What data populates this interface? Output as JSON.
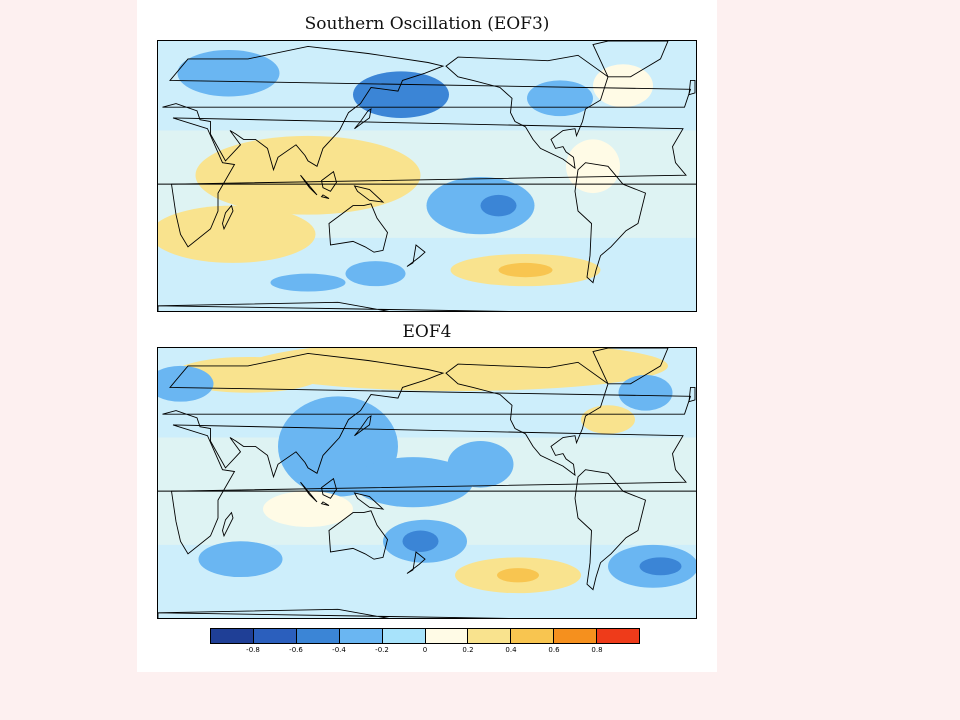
{
  "maps": [
    {
      "title": "Southern Oscillation (EOF3)",
      "anomalies": [
        {
          "lon": 47,
          "lat": 62,
          "rx": 34,
          "ry": 13,
          "value": -0.4
        },
        {
          "lon": 162,
          "lat": 50,
          "rx": 32,
          "ry": 13,
          "value": -0.45
        },
        {
          "lon": 165,
          "lat": 52,
          "rx": 16,
          "ry": 7,
          "value": -0.55
        },
        {
          "lon": 268,
          "lat": 48,
          "rx": 22,
          "ry": 10,
          "value": -0.3
        },
        {
          "lon": 215,
          "lat": -12,
          "rx": 36,
          "ry": 16,
          "value": -0.3
        },
        {
          "lon": 227,
          "lat": -12,
          "rx": 12,
          "ry": 6,
          "value": -0.45
        },
        {
          "lon": 100,
          "lat": 5,
          "rx": 75,
          "ry": 22,
          "value": 0.25
        },
        {
          "lon": 128,
          "lat": 8,
          "rx": 30,
          "ry": 12,
          "value": 0.32
        },
        {
          "lon": 50,
          "lat": -28,
          "rx": 55,
          "ry": 16,
          "value": 0.2
        },
        {
          "lon": 245,
          "lat": -48,
          "rx": 50,
          "ry": 9,
          "value": 0.28
        },
        {
          "lon": 245,
          "lat": -48,
          "rx": 18,
          "ry": 4,
          "value": 0.4
        },
        {
          "lon": 290,
          "lat": 10,
          "rx": 18,
          "ry": 15,
          "value": 0.15
        },
        {
          "lon": 310,
          "lat": 55,
          "rx": 20,
          "ry": 12,
          "value": 0.15
        },
        {
          "lon": 145,
          "lat": -50,
          "rx": 20,
          "ry": 7,
          "value": -0.3
        },
        {
          "lon": 100,
          "lat": -55,
          "rx": 25,
          "ry": 5,
          "value": -0.25
        }
      ]
    },
    {
      "title": "EOF4",
      "anomalies": [
        {
          "lon": 200,
          "lat": 70,
          "rx": 140,
          "ry": 14,
          "value": 0.2
        },
        {
          "lon": 60,
          "lat": 65,
          "rx": 50,
          "ry": 10,
          "value": 0.22
        },
        {
          "lon": 120,
          "lat": 25,
          "rx": 40,
          "ry": 28,
          "value": -0.22
        },
        {
          "lon": 170,
          "lat": 5,
          "rx": 40,
          "ry": 14,
          "value": -0.3
        },
        {
          "lon": 178,
          "lat": -28,
          "rx": 28,
          "ry": 12,
          "value": -0.3
        },
        {
          "lon": 175,
          "lat": -28,
          "rx": 12,
          "ry": 6,
          "value": -0.5
        },
        {
          "lon": 215,
          "lat": 15,
          "rx": 22,
          "ry": 13,
          "value": -0.25
        },
        {
          "lon": 15,
          "lat": 60,
          "rx": 22,
          "ry": 10,
          "value": -0.3
        },
        {
          "lon": 55,
          "lat": -38,
          "rx": 28,
          "ry": 10,
          "value": -0.25
        },
        {
          "lon": 240,
          "lat": -47,
          "rx": 42,
          "ry": 10,
          "value": 0.28
        },
        {
          "lon": 240,
          "lat": -47,
          "rx": 14,
          "ry": 4,
          "value": 0.45
        },
        {
          "lon": 330,
          "lat": -42,
          "rx": 30,
          "ry": 12,
          "value": -0.35
        },
        {
          "lon": 335,
          "lat": -42,
          "rx": 14,
          "ry": 5,
          "value": -0.55
        },
        {
          "lon": 325,
          "lat": 55,
          "rx": 18,
          "ry": 10,
          "value": -0.3
        },
        {
          "lon": 300,
          "lat": 40,
          "rx": 18,
          "ry": 8,
          "value": 0.22
        },
        {
          "lon": 300,
          "lat": 40,
          "rx": 6,
          "ry": 3,
          "value": 0.35
        },
        {
          "lon": 100,
          "lat": -10,
          "rx": 30,
          "ry": 10,
          "value": 0.12
        }
      ]
    }
  ],
  "legend": {
    "colors": [
      "#1f3f96",
      "#2b5fbd",
      "#3b85d6",
      "#6ab6f2",
      "#a8e3fb",
      "#fffbe6",
      "#f9e38e",
      "#f8c550",
      "#f5901e",
      "#ee3b1a"
    ],
    "ticks": [
      "-0.8",
      "-0.6",
      "-0.4",
      "-0.2",
      "0",
      "0.2",
      "0.4",
      "0.6",
      "0.8"
    ]
  }
}
